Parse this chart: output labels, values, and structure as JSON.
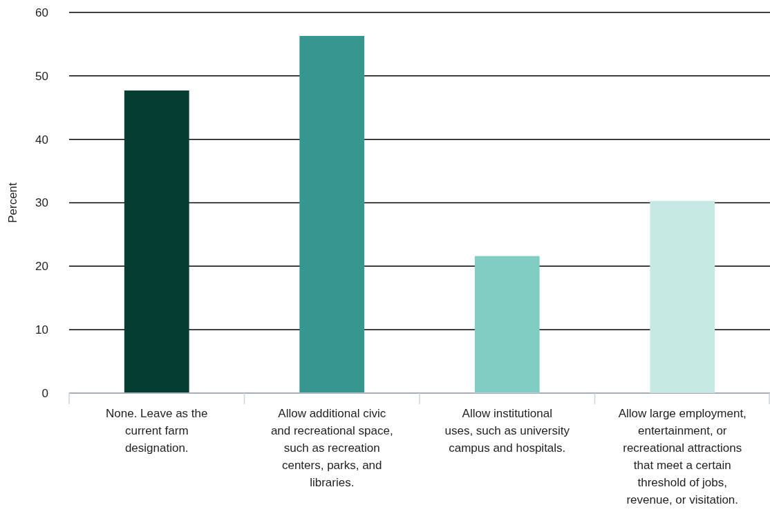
{
  "chart_data": {
    "type": "bar",
    "ylabel": "Percent",
    "categories": [
      "None. Leave as the current farm designation.",
      "Allow additional civic and recreational space, such as recreation centers, parks, and libraries.",
      "Allow institutional uses, such as university campus and hospitals.",
      "Allow large employment, entertainment, or recreational attractions that meet a certain threshold of jobs, revenue, or visitation."
    ],
    "values": [
      47.7,
      56.3,
      21.6,
      30.3
    ],
    "colors": [
      "#053d33",
      "#369690",
      "#80cec1",
      "#c6e9e3"
    ],
    "ylim": [
      0,
      60
    ],
    "yticks": [
      0,
      10,
      20,
      30,
      40,
      50,
      60
    ],
    "grid": "y"
  }
}
